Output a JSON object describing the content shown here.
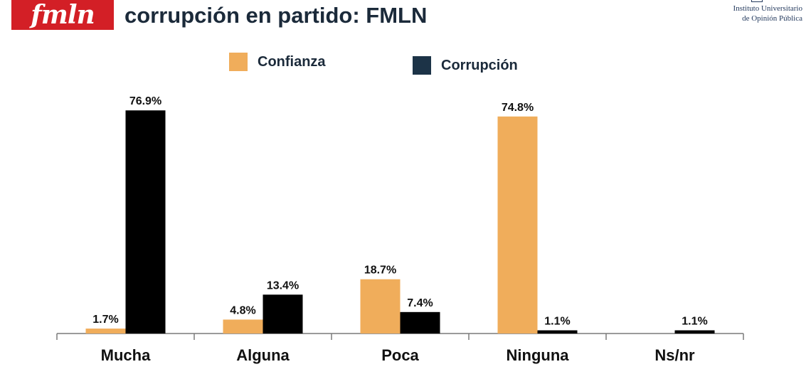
{
  "header": {
    "logo_text": "fmln",
    "title": "corrupción en partido: FMLN",
    "institute_line1": "Instituto Universitario",
    "institute_line2": "de Opinión Pública"
  },
  "colors": {
    "confianza": "#f0ad5b",
    "corrupcion": "#000000",
    "corrupcion_legend": "#1c3347",
    "brand_red": "#d31f26"
  },
  "chart_data": {
    "type": "bar",
    "categories": [
      "Mucha",
      "Alguna",
      "Poca",
      "Ninguna",
      "Ns/nr"
    ],
    "series": [
      {
        "name": "Confianza",
        "values": [
          1.7,
          4.8,
          18.7,
          74.8,
          null
        ],
        "labels": [
          "1.7%",
          "4.8%",
          "18.7%",
          "74.8%",
          ""
        ]
      },
      {
        "name": "Corrupción",
        "values": [
          76.9,
          13.4,
          7.4,
          1.1,
          1.1
        ],
        "labels": [
          "76.9%",
          "13.4%",
          "7.4%",
          "1.1%",
          "1.1%"
        ]
      }
    ],
    "legend_position": "top",
    "grid": false
  }
}
